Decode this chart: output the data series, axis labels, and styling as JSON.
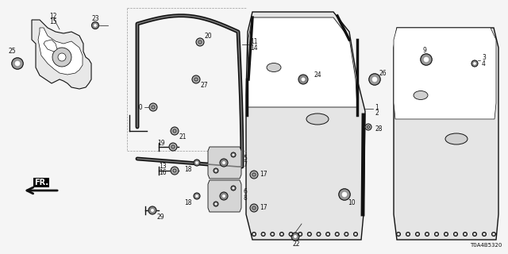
{
  "bg_color": "#f5f5f5",
  "line_color": "#111111",
  "diagram_code": "T0A4B5320",
  "fig_w": 6.4,
  "fig_h": 3.2,
  "dpi": 100
}
